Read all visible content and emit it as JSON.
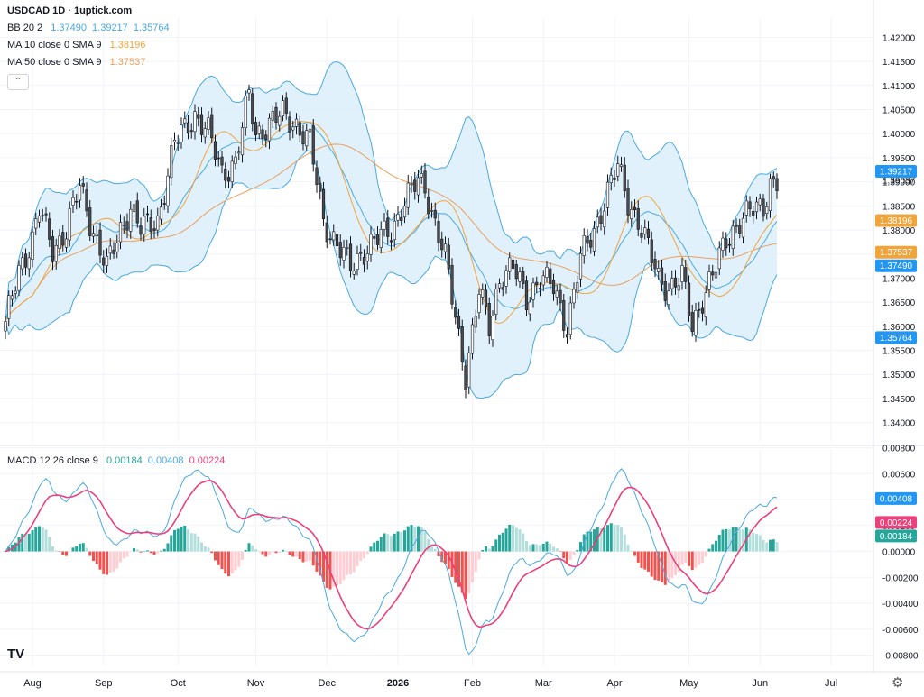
{
  "header": {
    "title": "USDCAD 1D · 1uptick.com",
    "bb_label": "BB 20 2",
    "bb_values": [
      "1.37490",
      "1.39217",
      "1.35764"
    ],
    "ma10_label": "MA 10 close 0 SMA 9",
    "ma10_value": "1.38196",
    "ma50_label": "MA 50 close 0 SMA 9",
    "ma50_value": "1.37537",
    "macd_label": "MACD 12 26 close 9",
    "macd_values": [
      "0.00184",
      "0.00408",
      "0.00224"
    ]
  },
  "colors": {
    "up": "#ffffff",
    "down": "#4a4a4a",
    "candle_border": "#131722",
    "bb": "#4aa9e0",
    "bb_fill": "#dceffc",
    "ma10": "#f0a43a",
    "ma50": "#e8a05c",
    "macd": "#4aa9e0",
    "signal": "#ec407a",
    "hist_up_strong": "#26a69a",
    "hist_up_weak": "#b2dfdb",
    "hist_dn_strong": "#ef5350",
    "hist_dn_weak": "#ffcdd2",
    "label_blue": "#2196f3",
    "label_orange": "#f0a43a",
    "label_pink": "#ec407a",
    "label_green": "#26a69a"
  },
  "chart_data": [
    {
      "type": "candlestick",
      "title": "USDCAD 1D · 1uptick.com",
      "ylim": [
        1.336,
        1.424
      ],
      "y_ticks": [
        "1.34000",
        "1.34500",
        "1.35000",
        "1.35500",
        "1.36000",
        "1.36500",
        "1.37000",
        "1.37500",
        "1.38000",
        "1.38500",
        "1.39000",
        "1.39500",
        "1.40000",
        "1.40500",
        "1.41000",
        "1.41500",
        "1.42000"
      ],
      "x_ticks": [
        "Aug",
        "Sep",
        "Oct",
        "Nov",
        "Dec",
        "2026",
        "Feb",
        "Mar",
        "Apr",
        "May",
        "Jun",
        "Jul"
      ],
      "current_price": "1.39037",
      "price_labels": [
        {
          "text": "1.39217",
          "value": 1.39217,
          "color": "#2196f3"
        },
        {
          "text": "1.38196",
          "value": 1.38196,
          "color": "#f0a43a"
        },
        {
          "text": "1.37537",
          "value": 1.37537,
          "color": "#f0a43a"
        },
        {
          "text": "1.37490",
          "value": 1.3749,
          "color": "#2196f3"
        },
        {
          "text": "1.35764",
          "value": 1.35764,
          "color": "#2196f3"
        }
      ],
      "close_anchors": [
        [
          0,
          1.36
        ],
        [
          4,
          1.372
        ],
        [
          8,
          1.378
        ],
        [
          10,
          1.384
        ],
        [
          14,
          1.376
        ],
        [
          18,
          1.38
        ],
        [
          22,
          1.389
        ],
        [
          25,
          1.382
        ],
        [
          30,
          1.372
        ],
        [
          34,
          1.38
        ],
        [
          37,
          1.385
        ],
        [
          40,
          1.38
        ],
        [
          45,
          1.382
        ],
        [
          50,
          1.398
        ],
        [
          56,
          1.404
        ],
        [
          60,
          1.4
        ],
        [
          64,
          1.392
        ],
        [
          68,
          1.394
        ],
        [
          72,
          1.408
        ],
        [
          74,
          1.4
        ],
        [
          78,
          1.402
        ],
        [
          82,
          1.404
        ],
        [
          86,
          1.402
        ],
        [
          90,
          1.398
        ],
        [
          94,
          1.382
        ],
        [
          98,
          1.377
        ],
        [
          102,
          1.372
        ],
        [
          106,
          1.376
        ],
        [
          110,
          1.378
        ],
        [
          114,
          1.38
        ],
        [
          118,
          1.386
        ],
        [
          122,
          1.39
        ],
        [
          124,
          1.389
        ],
        [
          126,
          1.384
        ],
        [
          130,
          1.374
        ],
        [
          134,
          1.358
        ],
        [
          136,
          1.35
        ],
        [
          140,
          1.367
        ],
        [
          143,
          1.36
        ],
        [
          146,
          1.37
        ],
        [
          150,
          1.372
        ],
        [
          154,
          1.366
        ],
        [
          158,
          1.37
        ],
        [
          162,
          1.368
        ],
        [
          166,
          1.36
        ],
        [
          170,
          1.374
        ],
        [
          174,
          1.38
        ],
        [
          178,
          1.388
        ],
        [
          181,
          1.393
        ],
        [
          184,
          1.386
        ],
        [
          187,
          1.382
        ],
        [
          190,
          1.376
        ],
        [
          193,
          1.37
        ],
        [
          196,
          1.368
        ],
        [
          200,
          1.37
        ],
        [
          203,
          1.36
        ],
        [
          206,
          1.366
        ],
        [
          210,
          1.372
        ],
        [
          213,
          1.378
        ],
        [
          217,
          1.382
        ],
        [
          221,
          1.384
        ],
        [
          224,
          1.385
        ],
        [
          226,
          1.39
        ]
      ]
    },
    {
      "type": "macd",
      "title": "MACD 12 26 close 9",
      "ylim": [
        -0.0088,
        0.0079
      ],
      "y_ticks": [
        "0.00800",
        "0.00600",
        "0.00400",
        "0.00200",
        "0.00000",
        "-0.00200",
        "-0.00400",
        "-0.00600",
        "-0.00800"
      ],
      "x_ticks": [
        "Aug",
        "Sep",
        "Oct",
        "Nov",
        "Dec",
        "2026",
        "Feb",
        "Mar",
        "Apr",
        "May",
        "Jun",
        "Jul"
      ],
      "values": {
        "histogram": 0.00184,
        "macd": 0.00408,
        "signal": 0.00224
      },
      "price_labels": [
        {
          "text": "0.00408",
          "value": 0.00408,
          "color": "#2196f3"
        },
        {
          "text": "0.00224",
          "value": 0.00224,
          "color": "#ec407a"
        },
        {
          "text": "0.00184",
          "value": 0.00184,
          "color": "#26a69a"
        }
      ]
    }
  ]
}
